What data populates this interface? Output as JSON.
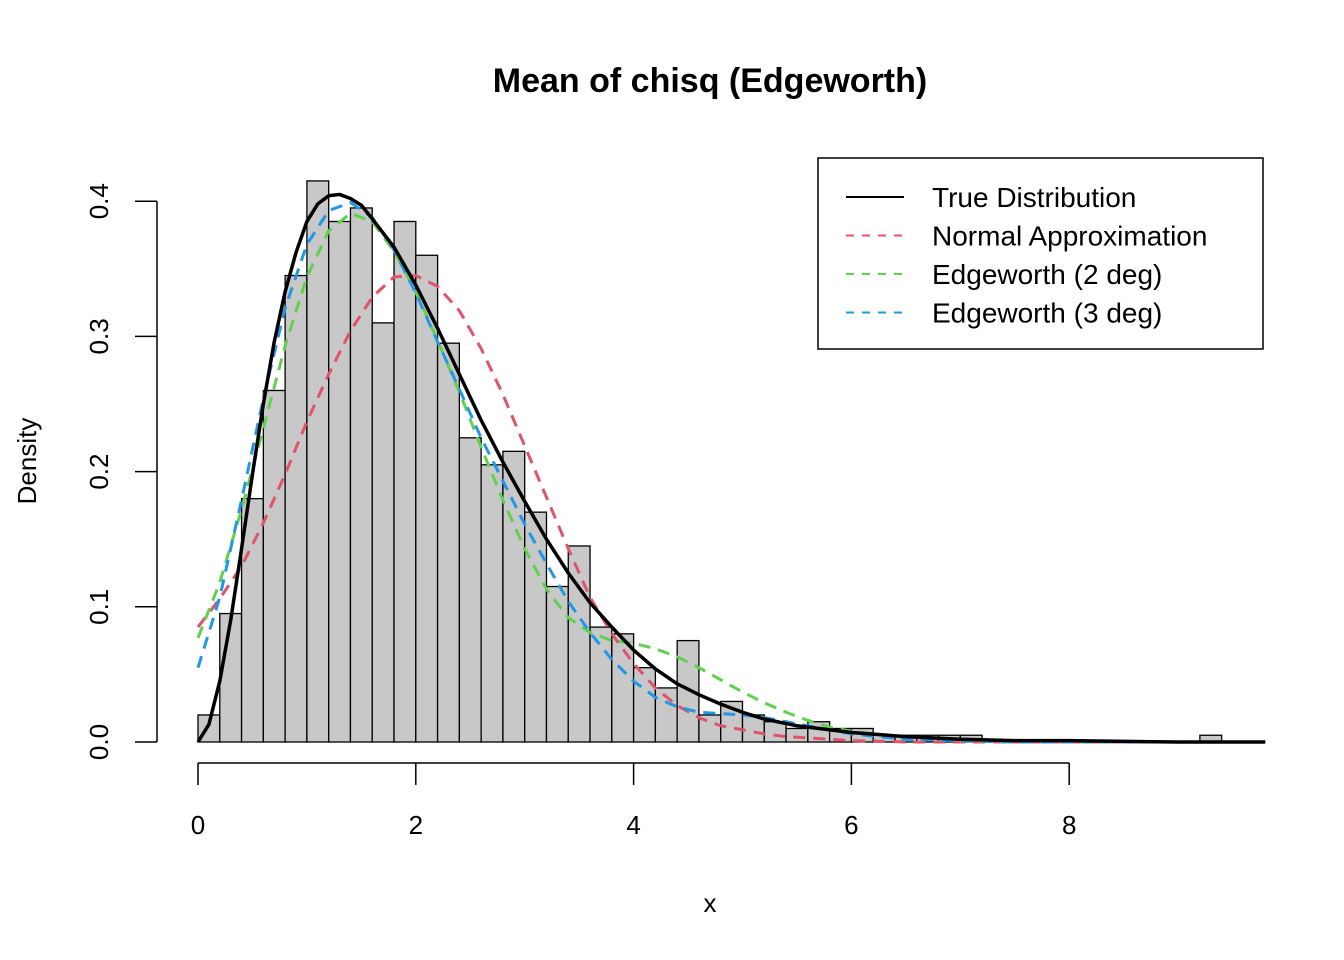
{
  "chart_data": {
    "type": "histogram",
    "title": "Mean of chisq (Edgeworth)",
    "xlabel": "x",
    "ylabel": "Density",
    "xlim": [
      0,
      9.8
    ],
    "ylim": [
      0,
      0.415
    ],
    "x_ticks": [
      0,
      2,
      4,
      6,
      8
    ],
    "x_tick_labels": [
      "0",
      "2",
      "4",
      "6",
      "8"
    ],
    "y_ticks": [
      0.0,
      0.1,
      0.2,
      0.3,
      0.4
    ],
    "y_tick_labels": [
      "0.0",
      "0.1",
      "0.2",
      "0.3",
      "0.4"
    ],
    "grid": false,
    "legend_position": "top-right",
    "bin_width": 0.2,
    "bin_start": 0,
    "bar_fill": "#c8c8c8",
    "bar_stroke": "#000000",
    "bars": [
      0.02,
      0.095,
      0.18,
      0.26,
      0.345,
      0.415,
      0.385,
      0.395,
      0.31,
      0.385,
      0.36,
      0.295,
      0.225,
      0.205,
      0.215,
      0.17,
      0.115,
      0.145,
      0.085,
      0.08,
      0.055,
      0.04,
      0.075,
      0.02,
      0.03,
      0.02,
      0.015,
      0.01,
      0.015,
      0.01,
      0.01,
      0.005,
      0.005,
      0.005,
      0.005,
      0.005,
      0.0,
      0.0,
      0.0,
      0.0,
      0.0,
      0.0,
      0.0,
      0.0,
      0.0,
      0.0,
      0.005
    ],
    "series": [
      {
        "name": "True Distribution",
        "color": "#000000",
        "dash": "solid",
        "x": [
          0,
          0.1,
          0.2,
          0.3,
          0.4,
          0.5,
          0.6,
          0.7,
          0.8,
          0.9,
          1.0,
          1.1,
          1.2,
          1.3,
          1.4,
          1.5,
          1.6,
          1.8,
          2.0,
          2.2,
          2.4,
          2.6,
          2.8,
          3.0,
          3.2,
          3.4,
          3.6,
          3.8,
          4.0,
          4.2,
          4.4,
          4.6,
          4.8,
          5.0,
          5.2,
          5.5,
          6.0,
          6.5,
          7.0,
          7.5,
          8.0,
          9.0,
          9.8
        ],
        "y": [
          0.0,
          0.013,
          0.045,
          0.09,
          0.143,
          0.198,
          0.25,
          0.296,
          0.333,
          0.362,
          0.385,
          0.398,
          0.404,
          0.405,
          0.402,
          0.397,
          0.387,
          0.366,
          0.338,
          0.306,
          0.272,
          0.238,
          0.207,
          0.178,
          0.15,
          0.125,
          0.103,
          0.085,
          0.068,
          0.054,
          0.043,
          0.035,
          0.028,
          0.022,
          0.017,
          0.012,
          0.007,
          0.004,
          0.002,
          0.001,
          0.001,
          0.0,
          0.0
        ]
      },
      {
        "name": "Normal Approximation",
        "color": "#df536b",
        "dash": "dashed",
        "x": [
          0,
          0.2,
          0.4,
          0.6,
          0.8,
          1.0,
          1.2,
          1.4,
          1.6,
          1.8,
          2.0,
          2.2,
          2.4,
          2.6,
          2.8,
          3.0,
          3.2,
          3.4,
          3.6,
          3.8,
          4.0,
          4.2,
          4.4,
          4.6,
          4.8,
          5.0,
          5.2,
          5.4,
          5.6,
          5.8,
          6.0,
          6.5,
          7.0,
          7.5,
          8.0,
          9.0,
          9.8
        ],
        "y": [
          0.085,
          0.106,
          0.13,
          0.162,
          0.198,
          0.237,
          0.272,
          0.304,
          0.329,
          0.344,
          0.345,
          0.337,
          0.319,
          0.291,
          0.257,
          0.219,
          0.181,
          0.143,
          0.107,
          0.08,
          0.058,
          0.04,
          0.027,
          0.018,
          0.012,
          0.009,
          0.006,
          0.004,
          0.003,
          0.002,
          0.001,
          0.0,
          0.0,
          0.0,
          0.0,
          0.0,
          0.0
        ]
      },
      {
        "name": "Edgeworth (2 deg)",
        "color": "#61d04f",
        "dash": "dashed",
        "x": [
          0,
          0.2,
          0.4,
          0.6,
          0.8,
          1.0,
          1.2,
          1.4,
          1.6,
          1.8,
          2.0,
          2.2,
          2.4,
          2.6,
          2.8,
          3.0,
          3.2,
          3.4,
          3.6,
          3.8,
          4.0,
          4.2,
          4.4,
          4.6,
          4.8,
          5.0,
          5.2,
          5.4,
          5.6,
          5.8,
          6.0,
          6.5,
          7.0,
          7.5,
          8.0,
          9.0,
          9.8
        ],
        "y": [
          0.077,
          0.118,
          0.172,
          0.232,
          0.293,
          0.344,
          0.378,
          0.391,
          0.385,
          0.363,
          0.333,
          0.297,
          0.259,
          0.218,
          0.179,
          0.143,
          0.113,
          0.092,
          0.081,
          0.075,
          0.073,
          0.069,
          0.063,
          0.055,
          0.046,
          0.037,
          0.029,
          0.022,
          0.016,
          0.011,
          0.008,
          0.003,
          0.001,
          0.0,
          0.0,
          0.0,
          0.0
        ]
      },
      {
        "name": "Edgeworth (3 deg)",
        "color": "#2297e6",
        "dash": "dashed",
        "x": [
          0,
          0.2,
          0.4,
          0.6,
          0.8,
          1.0,
          1.2,
          1.4,
          1.6,
          1.8,
          2.0,
          2.2,
          2.4,
          2.6,
          2.8,
          3.0,
          3.2,
          3.4,
          3.6,
          3.8,
          4.0,
          4.2,
          4.4,
          4.6,
          4.8,
          5.0,
          5.2,
          5.4,
          5.6,
          5.8,
          6.0,
          6.5,
          7.0,
          7.5,
          8.0,
          9.0,
          9.8
        ],
        "y": [
          0.055,
          0.107,
          0.179,
          0.254,
          0.321,
          0.368,
          0.393,
          0.399,
          0.388,
          0.364,
          0.332,
          0.296,
          0.261,
          0.225,
          0.193,
          0.161,
          0.132,
          0.104,
          0.081,
          0.061,
          0.045,
          0.033,
          0.026,
          0.022,
          0.021,
          0.02,
          0.018,
          0.015,
          0.012,
          0.009,
          0.006,
          0.002,
          0.001,
          0.0,
          0.0,
          0.0,
          0.0
        ]
      }
    ]
  }
}
